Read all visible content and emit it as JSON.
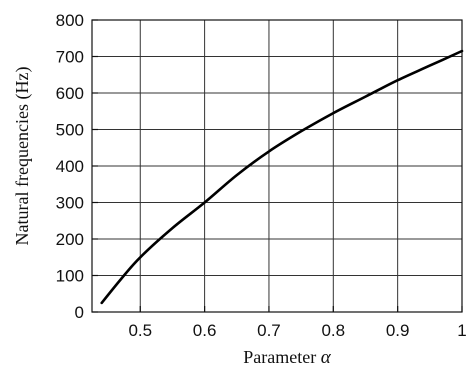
{
  "chart_data": {
    "type": "line",
    "xlabel": "Parameter",
    "xlabel_symbol": "α",
    "ylabel": "Natural frequencies (Hz)",
    "xlim": [
      0.425,
      1.0
    ],
    "ylim": [
      0,
      800
    ],
    "grid": true,
    "x_ticks": [
      0.5,
      0.6,
      0.7,
      0.8,
      0.9,
      1.0
    ],
    "x_tick_labels": [
      "0.5",
      "0.6",
      "0.7",
      "0.8",
      "0.9",
      "1"
    ],
    "y_ticks": [
      0,
      100,
      200,
      300,
      400,
      500,
      600,
      700,
      800
    ],
    "y_tick_labels": [
      "0",
      "100",
      "200",
      "300",
      "400",
      "500",
      "600",
      "700",
      "800"
    ],
    "series": [
      {
        "color": "#000000",
        "x": [
          0.44,
          0.47,
          0.5,
          0.55,
          0.6,
          0.65,
          0.7,
          0.75,
          0.8,
          0.85,
          0.9,
          0.95,
          1.0
        ],
        "y": [
          25,
          90,
          150,
          230,
          300,
          375,
          440,
          495,
          545,
          590,
          635,
          675,
          715
        ]
      }
    ]
  }
}
